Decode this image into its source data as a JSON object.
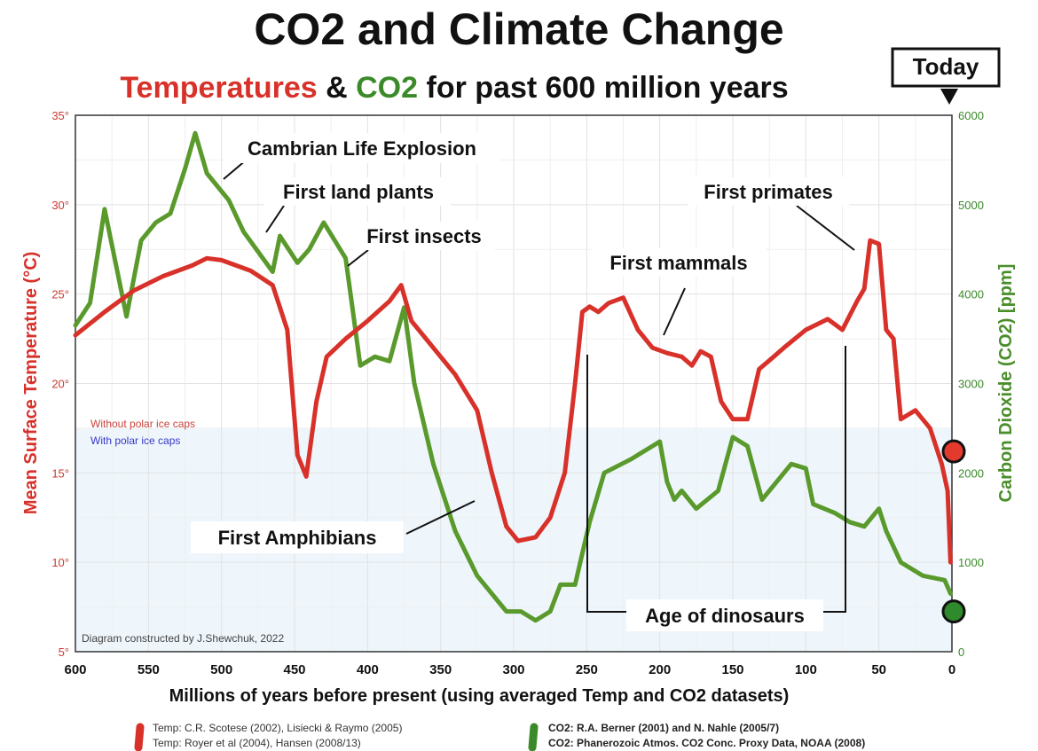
{
  "title": "CO2 and Climate Change",
  "subtitle": {
    "part1": "Temperatures",
    "part2": " & ",
    "part3": "CO2",
    "part4": " for past 600 million years"
  },
  "today_label": "Today",
  "colors": {
    "temperature": "#d8312a",
    "co2": "#5a9a2c",
    "ice_band": "#eef6fc",
    "grid": "#e2e2e2",
    "without_ice": "#c8453d",
    "with_ice": "#3737c8"
  },
  "chart_data": {
    "type": "line",
    "xlabel": "Millions of years before present (using averaged Temp and CO2 datasets)",
    "ylabel_left": "Mean Surface Temperature  (°C)",
    "ylabel_right": "Carbon Dioxide (CO2) [ppm]",
    "xlim": [
      600,
      0
    ],
    "ylim_left": [
      5,
      35
    ],
    "ylim_right": [
      0,
      6000
    ],
    "x_ticks": [
      "600",
      "550",
      "500",
      "450",
      "400",
      "350",
      "300",
      "250",
      "200",
      "150",
      "100",
      "50",
      "0"
    ],
    "y_left_ticks": [
      "5°",
      "10°",
      "15°",
      "20°",
      "25°",
      "30°",
      "35°"
    ],
    "y_right_ticks": [
      "0",
      "1000",
      "2000",
      "3000",
      "4000",
      "5000",
      "6000"
    ],
    "grid": true,
    "polar_ice_threshold_c": 17.5,
    "series": [
      {
        "name": "Temperature",
        "axis": "left",
        "points": [
          [
            600,
            22.7
          ],
          [
            580,
            24.0
          ],
          [
            560,
            25.2
          ],
          [
            540,
            26.0
          ],
          [
            520,
            26.6
          ],
          [
            510,
            27.0
          ],
          [
            500,
            26.9
          ],
          [
            480,
            26.3
          ],
          [
            465,
            25.5
          ],
          [
            455,
            23.0
          ],
          [
            448,
            16.0
          ],
          [
            442,
            14.8
          ],
          [
            435,
            19.0
          ],
          [
            428,
            21.5
          ],
          [
            415,
            22.5
          ],
          [
            400,
            23.5
          ],
          [
            385,
            24.6
          ],
          [
            377,
            25.5
          ],
          [
            370,
            23.5
          ],
          [
            355,
            22.0
          ],
          [
            340,
            20.5
          ],
          [
            325,
            18.5
          ],
          [
            315,
            15.0
          ],
          [
            305,
            12.0
          ],
          [
            297,
            11.2
          ],
          [
            285,
            11.4
          ],
          [
            275,
            12.5
          ],
          [
            265,
            15.0
          ],
          [
            258,
            20.0
          ],
          [
            253,
            24.0
          ],
          [
            248,
            24.3
          ],
          [
            242,
            24.0
          ],
          [
            235,
            24.5
          ],
          [
            225,
            24.8
          ],
          [
            215,
            23.0
          ],
          [
            205,
            22.0
          ],
          [
            195,
            21.7
          ],
          [
            185,
            21.5
          ],
          [
            178,
            21.0
          ],
          [
            172,
            21.8
          ],
          [
            165,
            21.5
          ],
          [
            158,
            19.0
          ],
          [
            150,
            18.0
          ],
          [
            140,
            18.0
          ],
          [
            132,
            20.8
          ],
          [
            122,
            21.5
          ],
          [
            115,
            22.0
          ],
          [
            100,
            23.0
          ],
          [
            85,
            23.6
          ],
          [
            75,
            23.0
          ],
          [
            65,
            24.6
          ],
          [
            60,
            25.3
          ],
          [
            56,
            28.0
          ],
          [
            50,
            27.8
          ],
          [
            45,
            23.0
          ],
          [
            40,
            22.5
          ],
          [
            35,
            18.0
          ],
          [
            25,
            18.5
          ],
          [
            15,
            17.5
          ],
          [
            7,
            15.5
          ],
          [
            3,
            14.0
          ],
          [
            1,
            10.0
          ]
        ]
      },
      {
        "name": "CO2",
        "axis": "right",
        "points": [
          [
            600,
            3650
          ],
          [
            590,
            3900
          ],
          [
            580,
            4950
          ],
          [
            565,
            3750
          ],
          [
            555,
            4600
          ],
          [
            545,
            4800
          ],
          [
            535,
            4900
          ],
          [
            525,
            5400
          ],
          [
            518,
            5800
          ],
          [
            510,
            5350
          ],
          [
            495,
            5050
          ],
          [
            485,
            4700
          ],
          [
            465,
            4250
          ],
          [
            460,
            4650
          ],
          [
            448,
            4350
          ],
          [
            440,
            4500
          ],
          [
            430,
            4800
          ],
          [
            415,
            4400
          ],
          [
            405,
            3200
          ],
          [
            395,
            3300
          ],
          [
            385,
            3250
          ],
          [
            375,
            3850
          ],
          [
            368,
            3000
          ],
          [
            355,
            2100
          ],
          [
            340,
            1350
          ],
          [
            325,
            850
          ],
          [
            310,
            550
          ],
          [
            305,
            450
          ],
          [
            295,
            450
          ],
          [
            285,
            350
          ],
          [
            275,
            450
          ],
          [
            268,
            750
          ],
          [
            258,
            750
          ],
          [
            248,
            1450
          ],
          [
            238,
            2000
          ],
          [
            220,
            2150
          ],
          [
            205,
            2300
          ],
          [
            200,
            2350
          ],
          [
            195,
            1900
          ],
          [
            190,
            1700
          ],
          [
            185,
            1800
          ],
          [
            175,
            1600
          ],
          [
            160,
            1800
          ],
          [
            150,
            2400
          ],
          [
            140,
            2300
          ],
          [
            130,
            1700
          ],
          [
            120,
            1900
          ],
          [
            110,
            2100
          ],
          [
            100,
            2050
          ],
          [
            95,
            1650
          ],
          [
            80,
            1550
          ],
          [
            70,
            1450
          ],
          [
            60,
            1400
          ],
          [
            50,
            1600
          ],
          [
            45,
            1350
          ],
          [
            35,
            1000
          ],
          [
            20,
            850
          ],
          [
            5,
            800
          ],
          [
            1,
            650
          ]
        ]
      }
    ],
    "legend": [
      {
        "label": "Without polar ice caps",
        "color": "red"
      },
      {
        "label": "With polar ice caps",
        "color": "blue"
      }
    ],
    "annotations": [
      {
        "text": "Cambrian Life Explosion"
      },
      {
        "text": "First land plants"
      },
      {
        "text": "First insects"
      },
      {
        "text": "First mammals"
      },
      {
        "text": "First primates"
      },
      {
        "text": "First Amphibians"
      },
      {
        "text": "Age of dinosaurs"
      }
    ],
    "today_values": {
      "temperature": 16.2,
      "co2": 450
    }
  },
  "credit": "Diagram constructed by J.Shewchuk, 2022",
  "sources": {
    "temp_line1": "Temp: C.R. Scotese (2002), Lisiecki & Raymo (2005)",
    "temp_line2": "Temp: Royer et al (2004), Hansen (2008/13)",
    "co2_line1": "CO2: R.A. Berner (2001) and N. Nahle (2005/7)",
    "co2_line2": "CO2: Phanerozoic Atmos. CO2 Conc. Proxy Data, NOAA (2008)"
  }
}
